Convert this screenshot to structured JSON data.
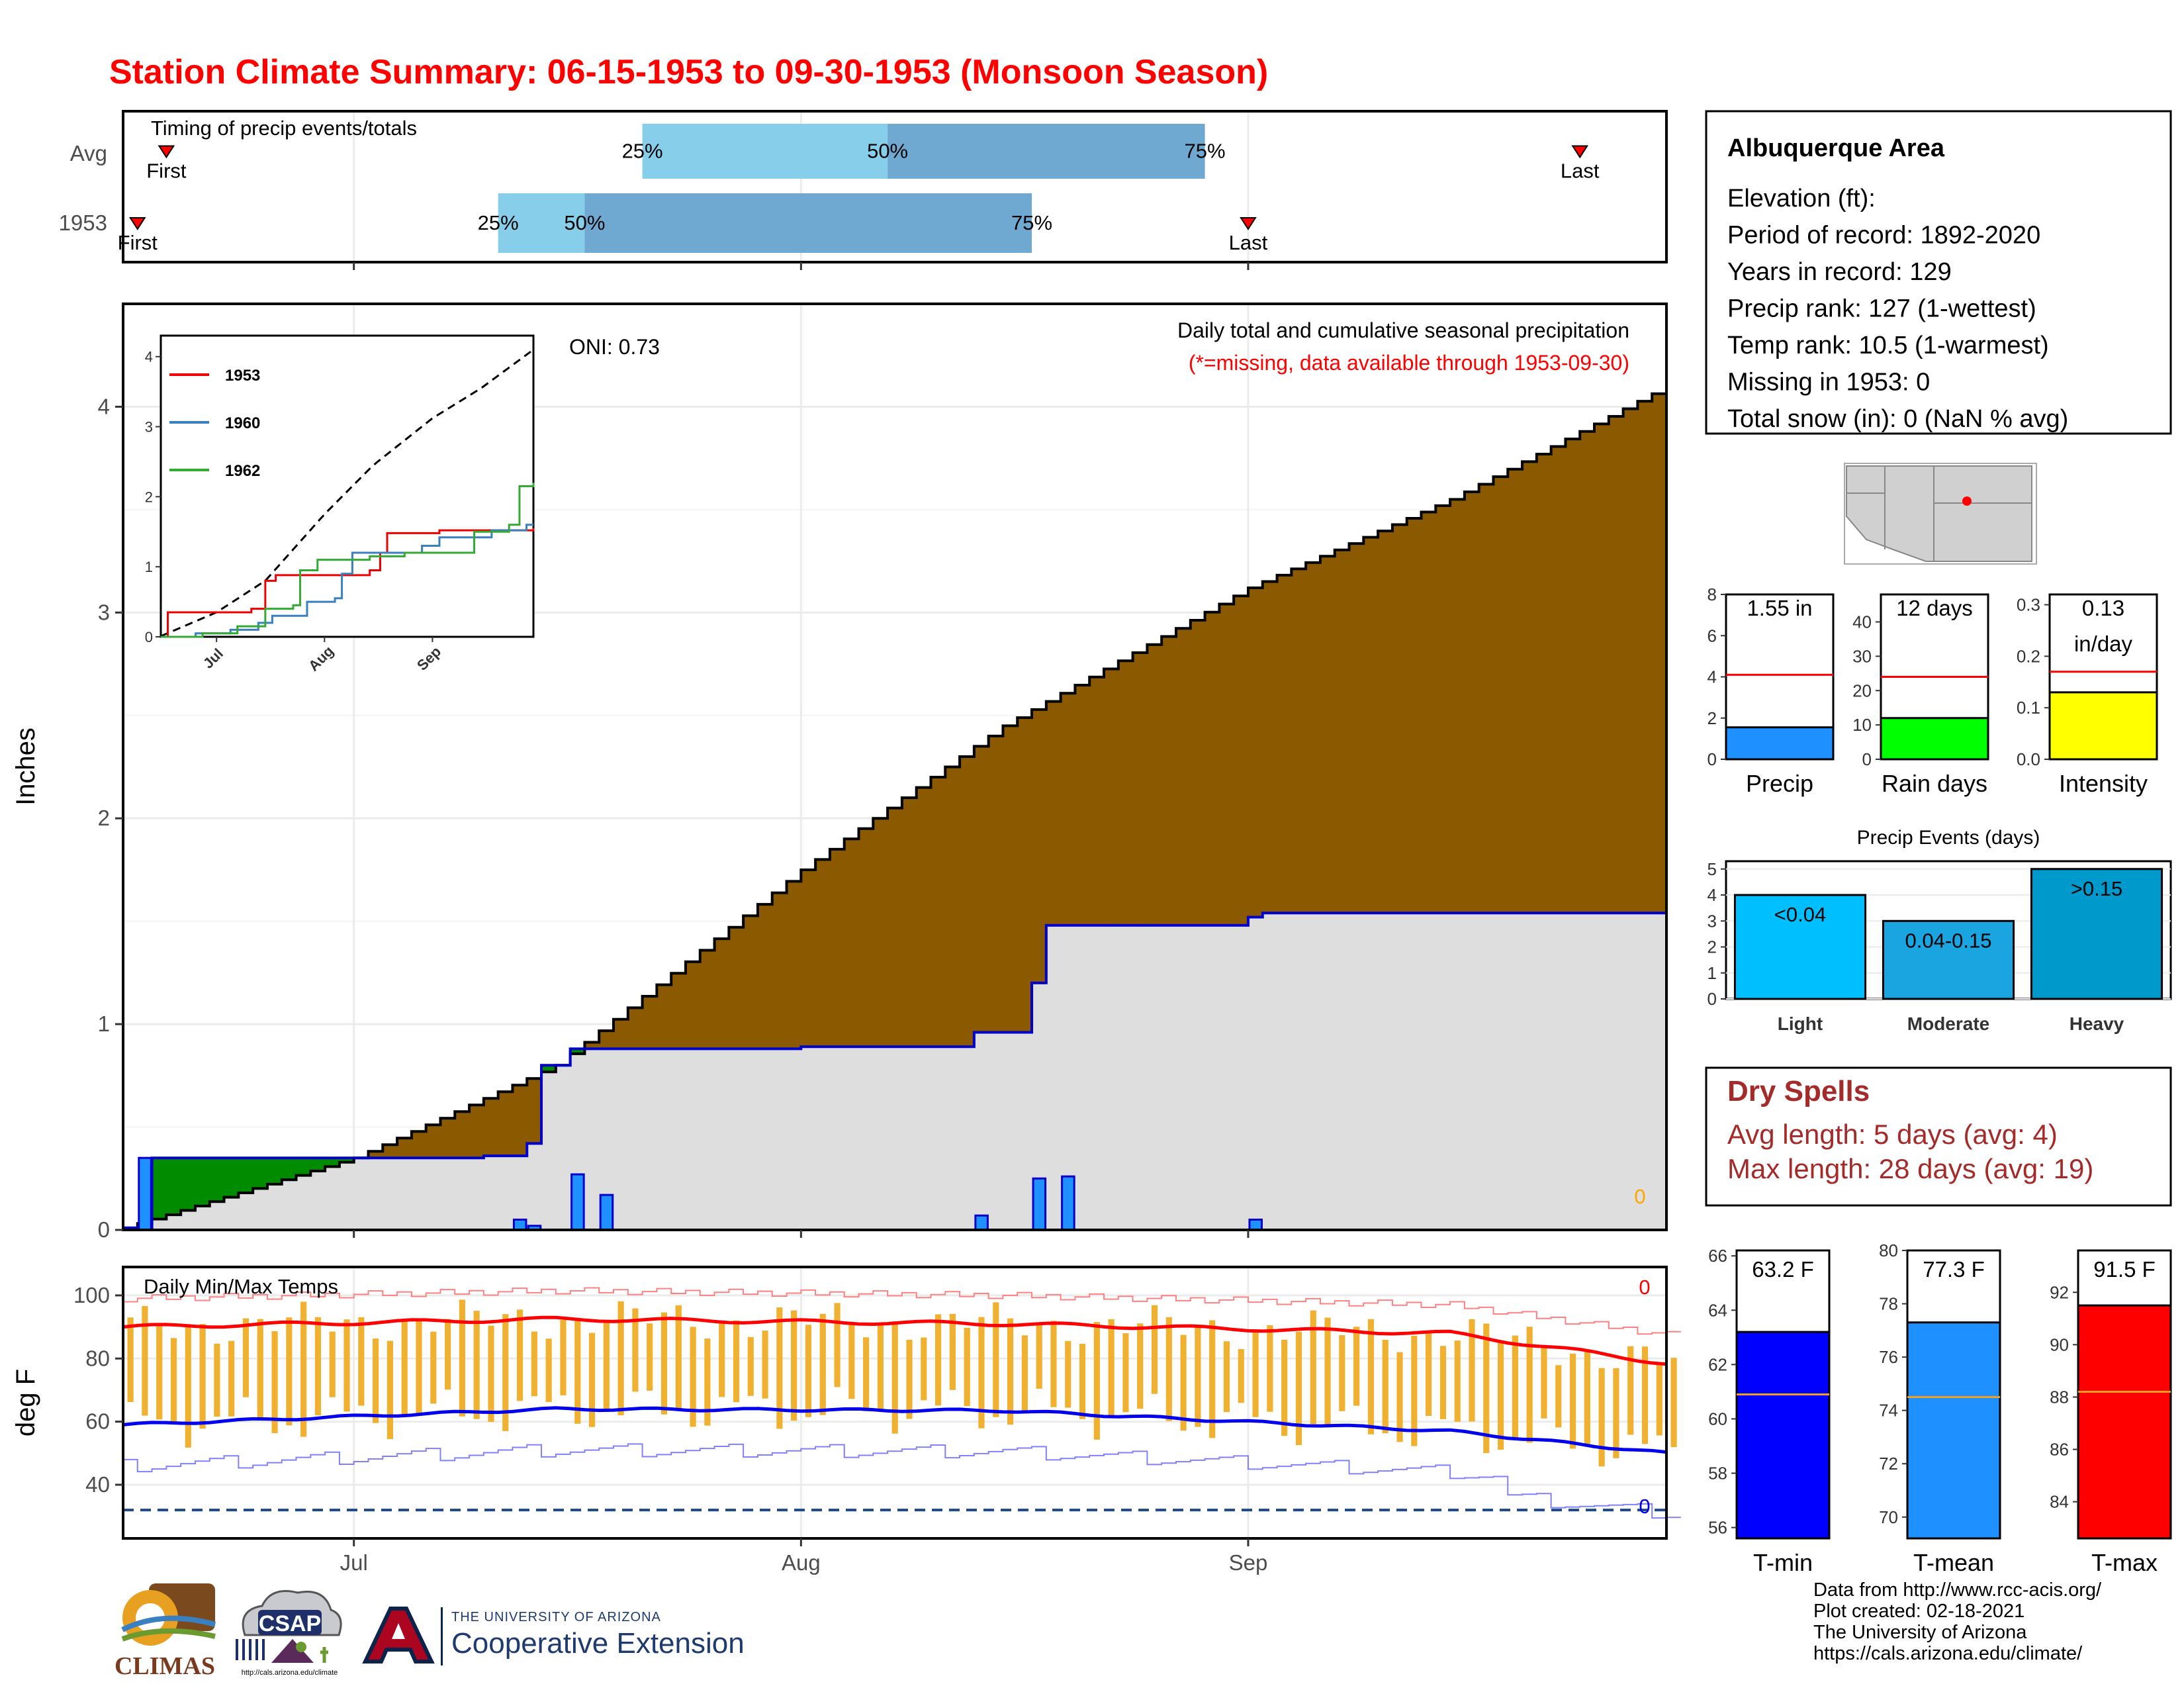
{
  "title": "Station Climate Summary: 06-15-1953 to 09-30-1953 (Monsoon Season)",
  "colors": {
    "title": "#ff0000",
    "accum_brown": "#8b5a00",
    "dry_green": "#008b00",
    "bar_blue": "#1e90ff",
    "panel_grey": "#dedede",
    "bar_orange": "#f0b030",
    "tmax_red": "#ff0000",
    "tmin_blue": "#0000ee",
    "light_blue": "#87ceeb",
    "mid_blue": "#6fa8d0",
    "spell_red": "#a52a2a"
  },
  "timing": {
    "title": "Timing of precip events/totals",
    "rows": [
      "Avg",
      "1953"
    ],
    "first_label": "First",
    "last_label": "Last",
    "pct_labels": [
      "25%",
      "50%",
      "75%"
    ],
    "x_axis": {
      "type": "date",
      "range": [
        "1953-06-15",
        "1953-09-30"
      ]
    },
    "avg": {
      "first": "1953-06-18",
      "p25": "1953-07-21",
      "p50": "1953-08-07",
      "p75": "1953-08-29",
      "last": "1953-09-24"
    },
    "y1953": {
      "first": "1953-06-16",
      "p25": "1953-07-11",
      "p50": "1953-07-17",
      "p75": "1953-08-17",
      "last": "1953-09-01"
    }
  },
  "main_chart": {
    "ylabel": "Inches",
    "annot1": "Daily total and cumulative seasonal precipitation",
    "annot2": "(*=missing, data available through 1953-09-30)",
    "oni": "ONI: 0.73",
    "zero_label": "0",
    "yticks": [
      "0",
      "1",
      "2",
      "3",
      "4"
    ],
    "ylim": [
      0,
      4.5
    ]
  },
  "inset": {
    "yticks": [
      "0",
      "1",
      "2",
      "3",
      "4"
    ],
    "xticks": [
      "Jul",
      "Aug",
      "Sep"
    ],
    "legend": [
      {
        "name": "1953",
        "color": "#ee0000"
      },
      {
        "name": "1960",
        "color": "#3a7fc0"
      },
      {
        "name": "1962",
        "color": "#33aa33"
      }
    ]
  },
  "temp_chart": {
    "ylabel": "deg F",
    "title": "Daily Min/Max Temps",
    "yticks": [
      "40",
      "60",
      "80",
      "100"
    ],
    "ylim": [
      23,
      109
    ],
    "freeze_line": 32,
    "max_count": "0",
    "min_count": "0"
  },
  "x_month_labels": [
    "Jul",
    "Aug",
    "Sep"
  ],
  "info_box": {
    "station": "Albuquerque Area",
    "lines": [
      "Elevation (ft):",
      "Period of record: 1892-2020",
      "Years in record: 129",
      "Precip rank: 127 (1-wettest)",
      "Temp rank: 10.5 (1-warmest)",
      "Missing in 1953: 0",
      "Total snow (in): 0 (NaN % avg)"
    ]
  },
  "small_bars": [
    {
      "label": "Precip",
      "value": 1.55,
      "avg": 4.1,
      "text1": "1.55 in",
      "text2": "",
      "ymax": 8,
      "ticks": [
        "0",
        "2",
        "4",
        "6",
        "8"
      ],
      "color": "#1e90ff"
    },
    {
      "label": "Rain days",
      "value": 12,
      "avg": 24,
      "text1": "12 days",
      "text2": "",
      "ymax": 48,
      "ticks": [
        "0",
        "10",
        "20",
        "30",
        "40"
      ],
      "color": "#00ff00"
    },
    {
      "label": "Intensity",
      "value": 0.13,
      "avg": 0.17,
      "text1": "0.13",
      "text2": "in/day",
      "ymax": 0.32,
      "ticks": [
        "0.0",
        "0.1",
        "0.2",
        "0.3"
      ],
      "color": "#ffff00"
    }
  ],
  "events": {
    "title": "Precip Events (days)",
    "categories": [
      "Light",
      "Moderate",
      "Heavy"
    ],
    "bar_labels": [
      "<0.04",
      "0.04-0.15",
      ">0.15"
    ],
    "values": [
      4,
      3,
      5
    ],
    "yticks": [
      "0",
      "1",
      "2",
      "3",
      "4",
      "5"
    ],
    "colors": [
      "#00bfff",
      "#1aa5e0",
      "#0099cc"
    ]
  },
  "dry_spells": {
    "title": "Dry Spells",
    "line1": "Avg length: 5 days (avg: 4)",
    "line2": "Max length: 28 days (avg: 19)"
  },
  "temp_bars": [
    {
      "label": "T-min",
      "text": "63.2 F",
      "value": 63.2,
      "avg": 60.9,
      "ymin": 55.6,
      "ymax": 66.2,
      "ticks": [
        "56",
        "58",
        "60",
        "62",
        "64",
        "66"
      ],
      "color": "#0000ff"
    },
    {
      "label": "T-mean",
      "text": "77.3 F",
      "value": 77.3,
      "avg": 74.5,
      "ymin": 69.2,
      "ymax": 80.0,
      "ticks": [
        "70",
        "72",
        "74",
        "76",
        "78",
        "80"
      ],
      "color": "#1e90ff"
    },
    {
      "label": "T-max",
      "text": "91.5 F",
      "value": 91.5,
      "avg": 88.2,
      "ymin": 82.6,
      "ymax": 93.6,
      "ticks": [
        "84",
        "86",
        "88",
        "90",
        "92"
      ],
      "color": "#ff0000"
    }
  ],
  "footer": [
    "Data from http://www.rcc-acis.org/",
    "Plot created: 02-18-2021",
    "The University of Arizona",
    "https://cals.arizona.edu/climate/"
  ],
  "logos": {
    "climas": "CLIMAS",
    "csap": "CSAP",
    "csap_url": "http://cals.arizona.edu/climate",
    "ua_line1": "THE UNIVERSITY OF ARIZONA",
    "ua_line2": "Cooperative Extension"
  },
  "chart_data": [
    {
      "type": "bar",
      "title": "Timing of precip events/totals",
      "categories": [
        "Avg",
        "1953"
      ],
      "series": [
        {
          "name": "First",
          "values": [
            "1953-06-18",
            "1953-06-16"
          ]
        },
        {
          "name": "25%",
          "values": [
            "1953-07-21",
            "1953-07-11"
          ]
        },
        {
          "name": "50%",
          "values": [
            "1953-08-07",
            "1953-07-17"
          ]
        },
        {
          "name": "75%",
          "values": [
            "1953-08-29",
            "1953-08-17"
          ]
        },
        {
          "name": "Last",
          "values": [
            "1953-09-24",
            "1953-09-01"
          ]
        }
      ]
    },
    {
      "type": "area",
      "title": "Daily total and cumulative seasonal precipitation",
      "ylabel": "Inches",
      "ylim": [
        0,
        4.5
      ],
      "x_range": [
        "1953-06-15",
        "1953-09-30"
      ],
      "cum_1953_breaks": [
        [
          "1953-06-15",
          0.01
        ],
        [
          "1953-06-17",
          0.35
        ],
        [
          "1953-07-10",
          0.36
        ],
        [
          "1953-07-13",
          0.42
        ],
        [
          "1953-07-14",
          0.8
        ],
        [
          "1953-07-16",
          0.88
        ],
        [
          "1953-08-01",
          0.89
        ],
        [
          "1953-08-13",
          0.96
        ],
        [
          "1953-08-17",
          1.2
        ],
        [
          "1953-08-18",
          1.48
        ],
        [
          "1953-09-01",
          1.52
        ],
        [
          "1953-09-02",
          1.54
        ],
        [
          "1953-09-30",
          1.55
        ]
      ],
      "avg_cumulative_points": [
        [
          "1953-06-15",
          0.01
        ],
        [
          "1953-07-01",
          0.35
        ],
        [
          "1953-07-15",
          0.8
        ],
        [
          "1953-08-01",
          1.75
        ],
        [
          "1953-08-15",
          2.45
        ],
        [
          "1953-09-01",
          3.12
        ],
        [
          "1953-09-15",
          3.55
        ],
        [
          "1953-09-30",
          4.1
        ]
      ],
      "daily_bars": [
        [
          "1953-06-16",
          0.35
        ],
        [
          "1953-07-12",
          0.05
        ],
        [
          "1953-07-13",
          0.02
        ],
        [
          "1953-07-16",
          0.27
        ],
        [
          "1953-07-18",
          0.17
        ],
        [
          "1953-08-13",
          0.07
        ],
        [
          "1953-08-17",
          0.25
        ],
        [
          "1953-08-19",
          0.26
        ],
        [
          "1953-09-01",
          0.05
        ]
      ]
    },
    {
      "type": "line",
      "title": "Daily Min/Max Temps",
      "ylabel": "deg F",
      "ylim": [
        23,
        109
      ],
      "series": [
        {
          "name": "",
          "x": [
            "1953-06-15",
            "1953-07-15",
            "1953-08-15",
            "1953-09-15",
            "1953-09-30"
          ],
          "values": [
            90,
            92.5,
            91,
            88,
            78.5
          ]
        },
        {
          "name": "",
          "x": [
            "1953-06-15",
            "1953-07-15",
            "1953-08-15",
            "1953-09-15",
            "1953-09-30"
          ],
          "values": [
            59,
            64,
            63.5,
            57,
            50
          ]
        }
      ]
    }
  ]
}
